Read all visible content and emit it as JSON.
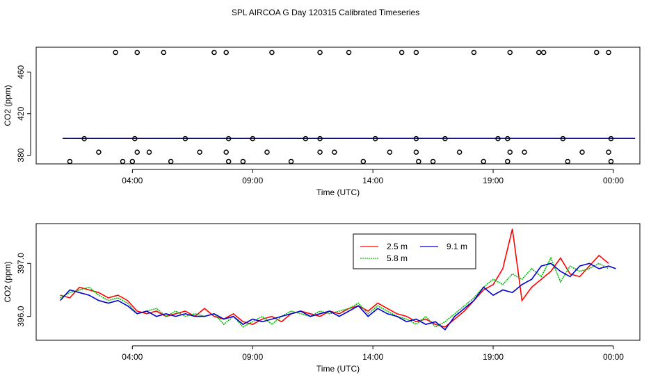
{
  "title": "SPL AIRCOA G  Day 120315  Calibrated Timeseries",
  "colors": {
    "s25": "#ff0000",
    "s58": "#00bb00",
    "s91": "#0000cc",
    "points": "#000000"
  },
  "chart_data": [
    {
      "type": "scatter",
      "xlabel": "Time (UTC)",
      "ylabel": "CO2 (ppm)",
      "xlim": [
        0.0,
        25.1
      ],
      "ylim": [
        371.7,
        484.0
      ],
      "xticks": [
        4,
        9,
        14,
        19,
        24
      ],
      "xtick_labels": [
        "04:00",
        "09:00",
        "14:00",
        "19:00",
        "00:00"
      ],
      "yticks": [
        380,
        420,
        460
      ],
      "ytick_labels": [
        "380",
        "420",
        "460"
      ],
      "calibration_points": [
        [
          1.4,
          374
        ],
        [
          2.0,
          396
        ],
        [
          2.6,
          383
        ],
        [
          3.3,
          479
        ],
        [
          3.6,
          374
        ],
        [
          4.1,
          396
        ],
        [
          4.0,
          374
        ],
        [
          4.2,
          383
        ],
        [
          4.2,
          479
        ],
        [
          4.7,
          383
        ],
        [
          5.3,
          479
        ],
        [
          5.6,
          374
        ],
        [
          6.2,
          396
        ],
        [
          6.8,
          383
        ],
        [
          7.4,
          479
        ],
        [
          7.9,
          479
        ],
        [
          7.9,
          383
        ],
        [
          8.0,
          374
        ],
        [
          8.0,
          396
        ],
        [
          8.6,
          374
        ],
        [
          9.0,
          396
        ],
        [
          9.6,
          383
        ],
        [
          9.8,
          479
        ],
        [
          10.6,
          374
        ],
        [
          11.2,
          396
        ],
        [
          11.8,
          479
        ],
        [
          11.8,
          383
        ],
        [
          11.8,
          396
        ],
        [
          12.4,
          383
        ],
        [
          13.0,
          479
        ],
        [
          13.6,
          374
        ],
        [
          14.1,
          396
        ],
        [
          14.7,
          383
        ],
        [
          15.2,
          479
        ],
        [
          15.8,
          479
        ],
        [
          15.8,
          383
        ],
        [
          15.8,
          396
        ],
        [
          15.9,
          374
        ],
        [
          16.5,
          374
        ],
        [
          17.0,
          396
        ],
        [
          17.6,
          383
        ],
        [
          18.2,
          479
        ],
        [
          18.6,
          374
        ],
        [
          19.2,
          396
        ],
        [
          19.6,
          374
        ],
        [
          19.6,
          396
        ],
        [
          19.7,
          479
        ],
        [
          19.7,
          383
        ],
        [
          20.3,
          383
        ],
        [
          20.9,
          479
        ],
        [
          21.1,
          479
        ],
        [
          21.9,
          396
        ],
        [
          22.1,
          374
        ],
        [
          22.7,
          383
        ],
        [
          23.3,
          479
        ],
        [
          23.8,
          479
        ],
        [
          23.8,
          383
        ],
        [
          23.9,
          396
        ],
        [
          23.9,
          374
        ]
      ],
      "series": [
        {
          "name": "2.5 m",
          "x": [
            1.1,
            24.9
          ],
          "values": [
            396.2,
            396.3
          ]
        },
        {
          "name": "5.8 m",
          "x": [
            1.1,
            24.9
          ],
          "values": [
            396.2,
            396.3
          ]
        },
        {
          "name": "9.1 m",
          "x": [
            1.1,
            24.9
          ],
          "values": [
            396.2,
            396.3
          ]
        }
      ]
    },
    {
      "type": "line",
      "xlabel": "Time (UTC)",
      "ylabel": "CO2 (ppm)",
      "xlim": [
        0.0,
        25.1
      ],
      "ylim": [
        395.55,
        397.75
      ],
      "xticks": [
        4,
        9,
        14,
        19,
        24
      ],
      "xtick_labels": [
        "04:00",
        "09:00",
        "14:00",
        "19:00",
        "00:00"
      ],
      "yticks": [
        396.0,
        397.0
      ],
      "ytick_labels": [
        "396.0",
        "397.0"
      ],
      "legend_position": "top-right",
      "legend": [
        "2.5 m",
        "5.8 m",
        "9.1 m"
      ],
      "series": [
        {
          "name": "2.5 m",
          "x": [
            1.0,
            1.4,
            1.8,
            2.2,
            2.6,
            3.0,
            3.4,
            3.8,
            4.2,
            4.6,
            5.0,
            5.4,
            5.8,
            6.2,
            6.6,
            7.0,
            7.4,
            7.8,
            8.2,
            8.6,
            9.0,
            9.4,
            9.8,
            10.2,
            10.6,
            11.0,
            11.4,
            11.8,
            12.2,
            12.6,
            13.0,
            13.4,
            13.8,
            14.2,
            14.6,
            15.0,
            15.4,
            15.8,
            16.2,
            16.6,
            17.0,
            17.4,
            17.8,
            18.2,
            18.6,
            19.0,
            19.4,
            19.8,
            20.2,
            20.6,
            21.0,
            21.4,
            21.8,
            22.2,
            22.6,
            23.0,
            23.4,
            23.8
          ],
          "values": [
            396.4,
            396.35,
            396.55,
            396.5,
            396.45,
            396.35,
            396.4,
            396.3,
            396.1,
            396.05,
            396.1,
            396.0,
            396.05,
            396.1,
            396.0,
            396.15,
            396.0,
            395.95,
            396.05,
            395.9,
            395.85,
            395.95,
            396.0,
            395.9,
            396.05,
            396.1,
            396.05,
            396.0,
            396.1,
            396.05,
            396.15,
            396.2,
            396.1,
            396.25,
            396.15,
            396.05,
            396.0,
            395.9,
            395.95,
            395.85,
            395.8,
            395.95,
            396.1,
            396.3,
            396.5,
            396.6,
            396.9,
            397.65,
            396.3,
            396.55,
            396.7,
            396.85,
            397.1,
            396.8,
            396.75,
            396.95,
            397.15,
            397.0
          ]
        },
        {
          "name": "5.8 m",
          "x": [
            1.0,
            1.4,
            1.8,
            2.2,
            2.6,
            3.0,
            3.4,
            3.8,
            4.2,
            4.6,
            5.0,
            5.4,
            5.8,
            6.2,
            6.6,
            7.0,
            7.4,
            7.8,
            8.2,
            8.6,
            9.0,
            9.4,
            9.8,
            10.2,
            10.6,
            11.0,
            11.4,
            11.8,
            12.2,
            12.6,
            13.0,
            13.4,
            13.8,
            14.2,
            14.6,
            15.0,
            15.4,
            15.8,
            16.2,
            16.6,
            17.0,
            17.4,
            17.8,
            18.2,
            18.6,
            19.0,
            19.4,
            19.8,
            20.2,
            20.6,
            21.0,
            21.4,
            21.8,
            22.2,
            22.6,
            23.0,
            23.4,
            23.8
          ],
          "values": [
            396.35,
            396.45,
            396.5,
            396.55,
            396.4,
            396.3,
            396.35,
            396.25,
            396.05,
            396.1,
            396.15,
            396.0,
            396.1,
            396.0,
            396.05,
            396.0,
            396.05,
            395.85,
            396.0,
            395.8,
            395.9,
            396.0,
            395.85,
            396.0,
            396.1,
            396.05,
            396.0,
            396.1,
            396.05,
            396.1,
            396.15,
            396.25,
            396.05,
            396.2,
            396.1,
            396.0,
            395.95,
            395.85,
            396.0,
            395.8,
            395.9,
            396.05,
            396.2,
            396.35,
            396.55,
            396.7,
            396.6,
            396.8,
            396.7,
            396.9,
            396.75,
            397.1,
            396.65,
            396.95,
            396.85,
            396.9,
            397.0,
            396.9
          ]
        },
        {
          "name": "9.1 m",
          "x": [
            1.0,
            1.4,
            1.8,
            2.2,
            2.6,
            3.0,
            3.4,
            3.8,
            4.2,
            4.6,
            5.0,
            5.4,
            5.8,
            6.2,
            6.6,
            7.0,
            7.4,
            7.8,
            8.2,
            8.6,
            9.0,
            9.4,
            9.8,
            10.2,
            10.6,
            11.0,
            11.4,
            11.8,
            12.2,
            12.6,
            13.0,
            13.4,
            13.8,
            14.2,
            14.6,
            15.0,
            15.4,
            15.8,
            16.2,
            16.6,
            17.0,
            17.4,
            17.8,
            18.2,
            18.6,
            19.0,
            19.4,
            19.8,
            20.2,
            20.6,
            21.0,
            21.4,
            21.8,
            22.2,
            22.6,
            23.0,
            23.4,
            23.8,
            24.1
          ],
          "values": [
            396.3,
            396.5,
            396.45,
            396.4,
            396.3,
            396.25,
            396.3,
            396.2,
            396.05,
            396.1,
            396.0,
            396.05,
            396.0,
            396.05,
            396.0,
            396.0,
            396.05,
            395.95,
            396.0,
            395.85,
            395.95,
            395.9,
            395.95,
            396.0,
            396.05,
            396.1,
            396.0,
            396.05,
            396.1,
            396.0,
            396.1,
            396.2,
            396.0,
            396.15,
            396.05,
            396.0,
            395.9,
            395.95,
            395.85,
            395.9,
            395.75,
            396.0,
            396.15,
            396.3,
            396.55,
            396.4,
            396.5,
            396.45,
            396.6,
            396.7,
            396.95,
            397.0,
            396.85,
            396.75,
            396.95,
            397.0,
            396.9,
            396.95,
            396.9
          ]
        }
      ]
    }
  ]
}
